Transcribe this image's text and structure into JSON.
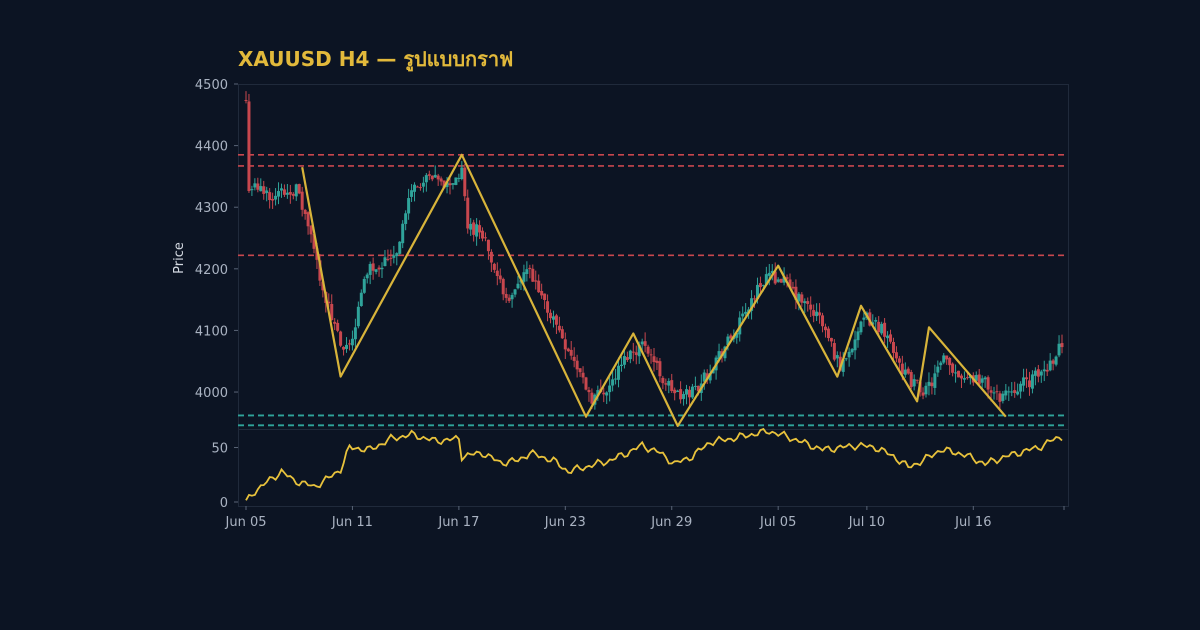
{
  "chart_data": {
    "type": "candlestick",
    "title": "XAUUSD H4 — รูปแบบกราฟ",
    "ylabel": "Price",
    "price_ylim": [
      3940,
      4500
    ],
    "price_yticks": [
      4000,
      4100,
      4200,
      4300,
      4400,
      4500
    ],
    "osc_ylim": [
      0,
      67
    ],
    "osc_yticks": [
      0,
      50
    ],
    "xlim": [
      "2025-06-05",
      "2025-07-21"
    ],
    "xticks": [
      "Jun 05",
      "Jun 11",
      "Jun 17",
      "Jun 23",
      "Jun 29",
      "Jul 05",
      "Jul 10",
      "Jul 16"
    ],
    "xtick_dates": [
      "2025-06-05",
      "2025-06-11",
      "2025-06-17",
      "2025-06-23",
      "2025-06-29",
      "2025-07-05",
      "2025-07-10",
      "2025-07-16"
    ],
    "price_anchors": [
      [
        "2025-06-05T00",
        4470
      ],
      [
        "2025-06-05T04",
        4335
      ],
      [
        "2025-06-06T12",
        4320
      ],
      [
        "2025-06-07T20",
        4330
      ],
      [
        "2025-06-08T12",
        4270
      ],
      [
        "2025-06-09T12",
        4150
      ],
      [
        "2025-06-10T12",
        4060
      ],
      [
        "2025-06-11T00",
        4090
      ],
      [
        "2025-06-11T20",
        4200
      ],
      [
        "2025-06-12T16",
        4210
      ],
      [
        "2025-06-13T12",
        4230
      ],
      [
        "2025-06-14T08",
        4330
      ],
      [
        "2025-06-15T08",
        4345
      ],
      [
        "2025-06-16T08",
        4335
      ],
      [
        "2025-06-17T04",
        4355
      ],
      [
        "2025-06-17T12",
        4270
      ],
      [
        "2025-06-18T08",
        4260
      ],
      [
        "2025-06-19T04",
        4180
      ],
      [
        "2025-06-20T00",
        4150
      ],
      [
        "2025-06-20T20",
        4200
      ],
      [
        "2025-06-21T12",
        4160
      ],
      [
        "2025-06-22T12",
        4110
      ],
      [
        "2025-06-23T08",
        4060
      ],
      [
        "2025-06-24T12",
        3990
      ],
      [
        "2025-06-25T12",
        4010
      ],
      [
        "2025-06-26T12",
        4060
      ],
      [
        "2025-06-27T12",
        4080
      ],
      [
        "2025-06-28T12",
        4020
      ],
      [
        "2025-06-29T12",
        3990
      ],
      [
        "2025-06-30T12",
        4010
      ],
      [
        "2025-07-01T16",
        4060
      ],
      [
        "2025-07-02T16",
        4100
      ],
      [
        "2025-07-03T12",
        4150
      ],
      [
        "2025-07-04T08",
        4190
      ],
      [
        "2025-07-05T04",
        4185
      ],
      [
        "2025-07-06T04",
        4150
      ],
      [
        "2025-07-07T08",
        4120
      ],
      [
        "2025-07-08T12",
        4040
      ],
      [
        "2025-07-09T04",
        4080
      ],
      [
        "2025-07-10T00",
        4120
      ],
      [
        "2025-07-11T00",
        4100
      ],
      [
        "2025-07-12T08",
        4020
      ],
      [
        "2025-07-13T08",
        4000
      ],
      [
        "2025-07-14T08",
        4050
      ],
      [
        "2025-07-15T04",
        4030
      ],
      [
        "2025-07-16T12",
        4020
      ],
      [
        "2025-07-17T08",
        3990
      ],
      [
        "2025-07-18T04",
        4005
      ],
      [
        "2025-07-19T08",
        4020
      ],
      [
        "2025-07-20T04",
        4040
      ],
      [
        "2025-07-21T00",
        4080
      ]
    ],
    "oscillator_anchors": [
      [
        "2025-06-05T00",
        0
      ],
      [
        "2025-06-05T12",
        10
      ],
      [
        "2025-06-06T08",
        20
      ],
      [
        "2025-06-07T00",
        28
      ],
      [
        "2025-06-07T16",
        20
      ],
      [
        "2025-06-08T20",
        14
      ],
      [
        "2025-06-09T16",
        22
      ],
      [
        "2025-06-10T08",
        30
      ],
      [
        "2025-06-10T20",
        50
      ],
      [
        "2025-06-12T00",
        48
      ],
      [
        "2025-06-13T04",
        58
      ],
      [
        "2025-06-14T08",
        62
      ],
      [
        "2025-06-15T16",
        56
      ],
      [
        "2025-06-17T00",
        58
      ],
      [
        "2025-06-17T04",
        42
      ],
      [
        "2025-06-18T08",
        45
      ],
      [
        "2025-06-19T08",
        36
      ],
      [
        "2025-06-20T08",
        38
      ],
      [
        "2025-06-21T00",
        45
      ],
      [
        "2025-06-22T08",
        38
      ],
      [
        "2025-06-23T04",
        28
      ],
      [
        "2025-06-24T08",
        33
      ],
      [
        "2025-06-25T12",
        38
      ],
      [
        "2025-06-26T12",
        45
      ],
      [
        "2025-06-27T08",
        52
      ],
      [
        "2025-06-28T08",
        45
      ],
      [
        "2025-06-29T04",
        35
      ],
      [
        "2025-06-30T04",
        42
      ],
      [
        "2025-07-01T04",
        55
      ],
      [
        "2025-07-02T08",
        58
      ],
      [
        "2025-07-03T12",
        62
      ],
      [
        "2025-07-04T12",
        65
      ],
      [
        "2025-07-05T12",
        60
      ],
      [
        "2025-07-06T12",
        54
      ],
      [
        "2025-07-07T12",
        48
      ],
      [
        "2025-07-08T12",
        50
      ],
      [
        "2025-07-09T12",
        52
      ],
      [
        "2025-07-10T12",
        50
      ],
      [
        "2025-07-11T12",
        42
      ],
      [
        "2025-07-12T08",
        32
      ],
      [
        "2025-07-13T04",
        38
      ],
      [
        "2025-07-14T04",
        48
      ],
      [
        "2025-07-15T04",
        45
      ],
      [
        "2025-07-16T00",
        40
      ],
      [
        "2025-07-16T16",
        35
      ],
      [
        "2025-07-17T12",
        40
      ],
      [
        "2025-07-18T12",
        45
      ],
      [
        "2025-07-19T16",
        50
      ],
      [
        "2025-07-20T12",
        57
      ],
      [
        "2025-07-21T00",
        60
      ]
    ],
    "zigzag": [
      [
        "2025-06-08T04",
        4365
      ],
      [
        "2025-06-10T08",
        4025
      ],
      [
        "2025-06-17T04",
        4385
      ],
      [
        "2025-06-24T04",
        3960
      ],
      [
        "2025-06-26T20",
        4095
      ],
      [
        "2025-06-29T08",
        3945
      ],
      [
        "2025-07-05T00",
        4205
      ],
      [
        "2025-07-08T08",
        4025
      ],
      [
        "2025-07-09T16",
        4140
      ],
      [
        "2025-07-12T20",
        3985
      ],
      [
        "2025-07-13T12",
        4105
      ],
      [
        "2025-07-17T20",
        3960
      ]
    ],
    "resistance_levels": [
      4385,
      4367,
      4222
    ],
    "support_levels": [
      3962,
      3946
    ],
    "colors": {
      "background": "#0c1423",
      "bullish": "#2fa39a",
      "bearish": "#c8474e",
      "zigzag": "#d8b43a",
      "oscillator": "#e8c23c",
      "resistance": "#c8474e",
      "support": "#2fa39a",
      "title": "#e2b93b",
      "grid": "#253044",
      "tick": "#aab3c2"
    }
  }
}
